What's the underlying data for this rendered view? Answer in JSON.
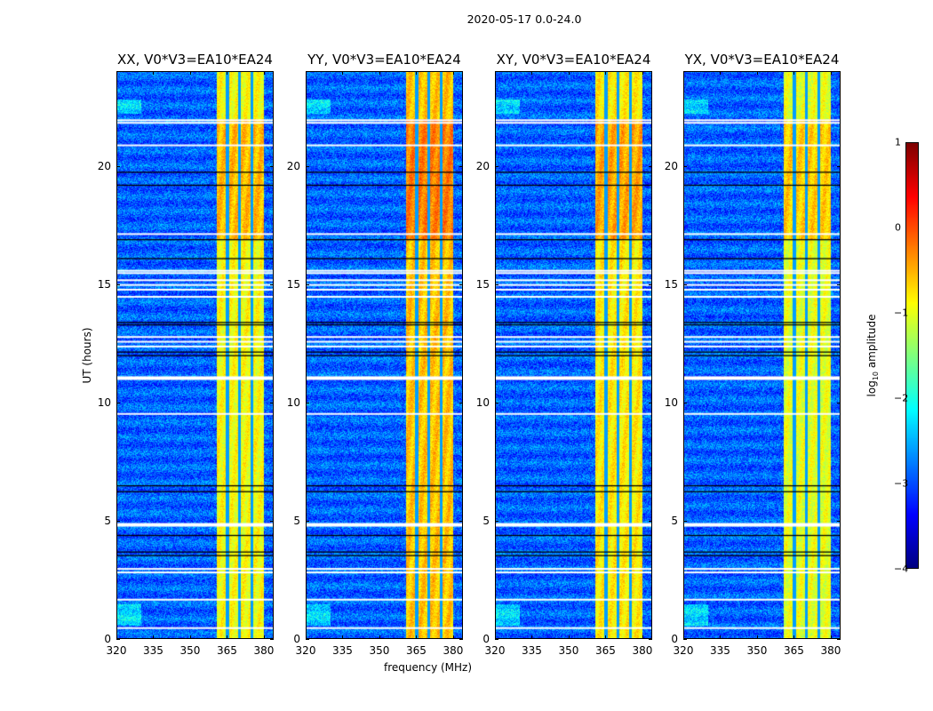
{
  "suptitle": "2020-05-17 0.0-24.0",
  "chart_data": {
    "type": "heatmap",
    "title": "2020-05-17 0.0-24.0",
    "xlabel": "frequency (MHz)",
    "ylabel": "UT (hours)",
    "xlim": [
      320,
      384
    ],
    "ylim": [
      0,
      24
    ],
    "xticks": [
      "320",
      "335",
      "350",
      "365",
      "380"
    ],
    "yticks": [
      "0",
      "5",
      "10",
      "15",
      "20"
    ],
    "panels": [
      {
        "title": "XX, V0*V3=EA10*EA24",
        "band_level": -0.9
      },
      {
        "title": "YY, V0*V3=EA10*EA24",
        "band_level": -0.6
      },
      {
        "title": "XY, V0*V3=EA10*EA24",
        "band_level": -0.8
      },
      {
        "title": "YX, V0*V3=EA10*EA24",
        "band_level": -1.0
      }
    ],
    "background_level": -2.9,
    "rfi_band_mhz": [
      360.5,
      380
    ],
    "channel_gaps_mhz": [
      365,
      370,
      375
    ],
    "flagged_hours_white": [
      21.96,
      21.85,
      20.9,
      17.15,
      15.6,
      15.5,
      15.2,
      15.0,
      14.8,
      14.5,
      12.8,
      12.6,
      12.4,
      11.1,
      9.55,
      4.9,
      3.0,
      2.85,
      1.7,
      0.5
    ],
    "dark_hours": [
      19.75,
      19.2,
      16.9,
      16.1,
      13.4,
      13.3,
      12.15,
      12.0,
      6.5,
      6.25,
      4.4,
      3.7,
      3.55
    ],
    "colorbar": {
      "label": "log10 amplitude",
      "label_main": "log",
      "label_sub": "10",
      "label_rest": " amplitude",
      "range": [
        -4,
        1
      ],
      "ticks": [
        "1",
        "0",
        "−1",
        "−2",
        "−3",
        "−4"
      ],
      "colormap": "jet"
    }
  }
}
